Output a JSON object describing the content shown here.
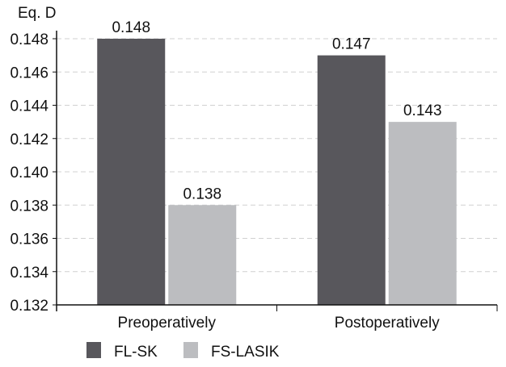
{
  "chart_data": {
    "type": "bar",
    "ylabel": "Eq. D",
    "categories": [
      "Preoperatively",
      "Postoperatively"
    ],
    "series": [
      {
        "name": "FL-SK",
        "values": [
          0.148,
          0.147
        ],
        "color": "#58575c"
      },
      {
        "name": "FS-LASIK",
        "values": [
          0.138,
          0.143
        ],
        "color": "#bcbdc0"
      }
    ],
    "data_labels": [
      [
        "0.148",
        "0.147"
      ],
      [
        "0.138",
        "0.143"
      ]
    ],
    "ylim": [
      0.132,
      0.148
    ],
    "yticks": [
      "0.132",
      "0.134",
      "0.136",
      "0.138",
      "0.140",
      "0.142",
      "0.144",
      "0.146",
      "0.148"
    ],
    "grid": "horizontal dashed",
    "legend": "bottom-left"
  }
}
